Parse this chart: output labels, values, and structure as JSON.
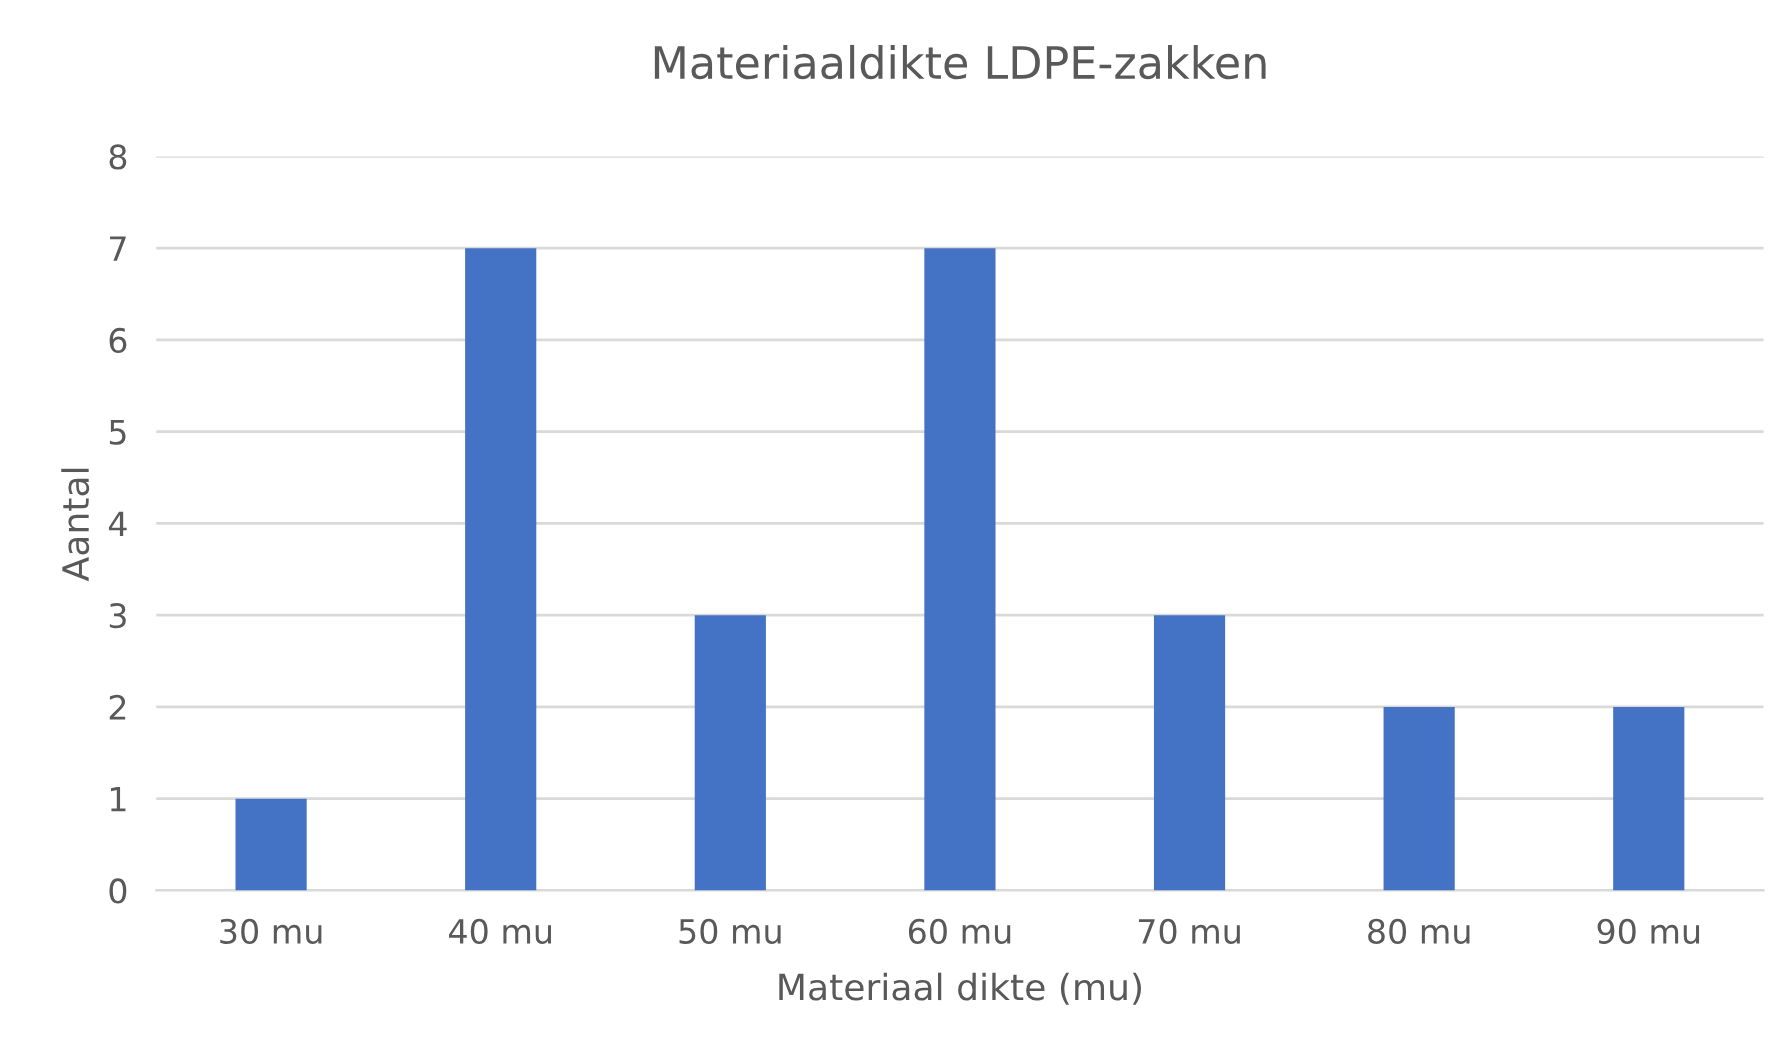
{
  "chart_data": {
    "type": "bar",
    "title": "Materiaaldikte LDPE-zakken",
    "xlabel": "Materiaal dikte (mu)",
    "ylabel": "Aantal",
    "categories": [
      "30 mu",
      "40 mu",
      "50 mu",
      "60 mu",
      "70 mu",
      "80 mu",
      "90 mu"
    ],
    "values": [
      1,
      7,
      3,
      7,
      3,
      2,
      2
    ],
    "color": "#4472c4",
    "ylim": [
      0,
      8
    ],
    "yticks": [
      0,
      1,
      2,
      3,
      4,
      5,
      6,
      7,
      8
    ],
    "grid": "y",
    "legend": false
  }
}
